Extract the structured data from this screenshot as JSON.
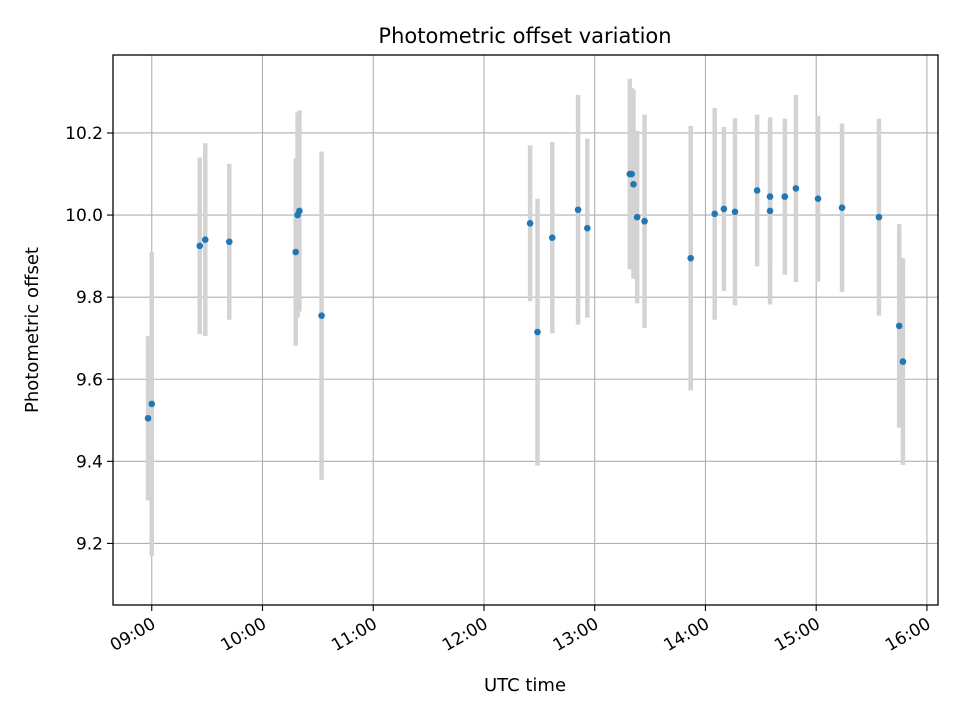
{
  "chart_data": {
    "type": "scatter",
    "title": "Photometric offset variation",
    "xlabel": "UTC time",
    "ylabel": "Photometric offset",
    "x_tick_labels": [
      "09:00",
      "10:00",
      "11:00",
      "12:00",
      "13:00",
      "14:00",
      "15:00",
      "16:00"
    ],
    "y_tick_labels": [
      "9.2",
      "9.4",
      "9.6",
      "9.8",
      "10.0",
      "10.2"
    ],
    "y_ticks": [
      9.2,
      9.4,
      9.6,
      9.8,
      10.0,
      10.2
    ],
    "xlim": [
      "08:39",
      "16:06"
    ],
    "ylim": [
      9.05,
      10.39
    ],
    "grid": true,
    "point_color": "#1f77b4",
    "errorbar_color": "#d3d3d3",
    "series": [
      {
        "points": [
          {
            "x": "08:58",
            "y": 9.505,
            "err": 0.2
          },
          {
            "x": "09:00",
            "y": 9.54,
            "err": 0.37
          },
          {
            "x": "09:26",
            "y": 9.925,
            "err": 0.215
          },
          {
            "x": "09:29",
            "y": 9.94,
            "err": 0.235
          },
          {
            "x": "09:42",
            "y": 9.935,
            "err": 0.19
          },
          {
            "x": "10:18",
            "y": 9.91,
            "err": 0.228
          },
          {
            "x": "10:19",
            "y": 10.0,
            "err": 0.25
          },
          {
            "x": "10:20",
            "y": 10.01,
            "err": 0.245
          },
          {
            "x": "10:32",
            "y": 9.755,
            "err": 0.4
          },
          {
            "x": "12:25",
            "y": 9.98,
            "err": 0.19
          },
          {
            "x": "12:29",
            "y": 9.715,
            "err": 0.325
          },
          {
            "x": "12:37",
            "y": 9.945,
            "err": 0.233
          },
          {
            "x": "12:51",
            "y": 10.013,
            "err": 0.28
          },
          {
            "x": "12:56",
            "y": 9.968,
            "err": 0.218
          },
          {
            "x": "13:19",
            "y": 10.1,
            "err": 0.232
          },
          {
            "x": "13:20",
            "y": 10.1,
            "err": 0.21
          },
          {
            "x": "13:21",
            "y": 10.075,
            "err": 0.23
          },
          {
            "x": "13:23",
            "y": 9.995,
            "err": 0.21
          },
          {
            "x": "13:27",
            "y": 9.985,
            "err": 0.26
          },
          {
            "x": "13:52",
            "y": 9.895,
            "err": 0.322
          },
          {
            "x": "14:05",
            "y": 10.003,
            "err": 0.258
          },
          {
            "x": "14:10",
            "y": 10.015,
            "err": 0.2
          },
          {
            "x": "14:16",
            "y": 10.008,
            "err": 0.228
          },
          {
            "x": "14:28",
            "y": 10.06,
            "err": 0.185
          },
          {
            "x": "14:35",
            "y": 10.01,
            "err": 0.228
          },
          {
            "x": "14:35",
            "y": 10.045,
            "err": 0.165
          },
          {
            "x": "14:43",
            "y": 10.045,
            "err": 0.19
          },
          {
            "x": "14:49",
            "y": 10.065,
            "err": 0.228
          },
          {
            "x": "15:01",
            "y": 10.04,
            "err": 0.202
          },
          {
            "x": "15:14",
            "y": 10.018,
            "err": 0.205
          },
          {
            "x": "15:34",
            "y": 9.995,
            "err": 0.24
          },
          {
            "x": "15:45",
            "y": 9.73,
            "err": 0.248
          },
          {
            "x": "15:47",
            "y": 9.643,
            "err": 0.252
          }
        ]
      }
    ]
  }
}
